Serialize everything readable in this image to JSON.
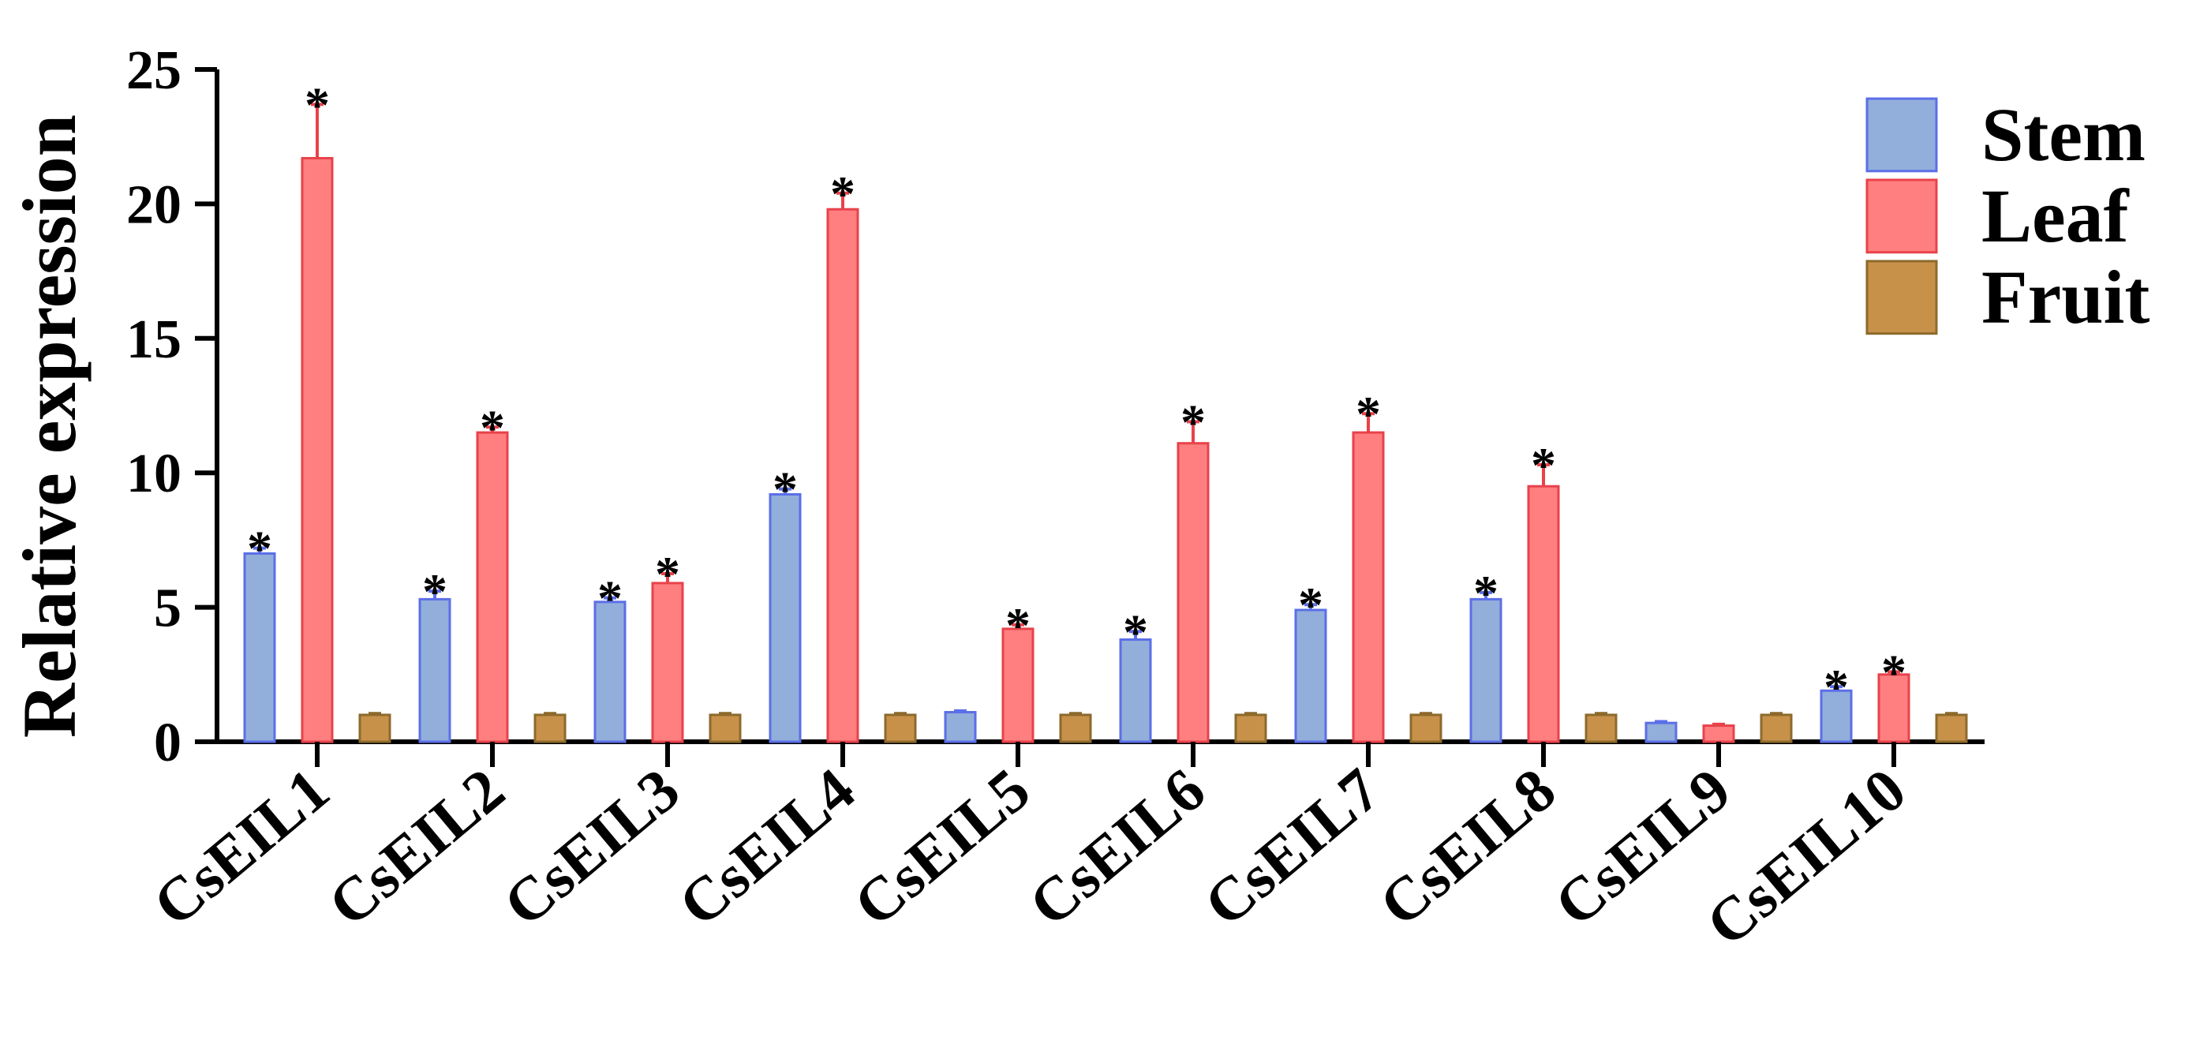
{
  "chart_data": {
    "type": "bar",
    "title": "",
    "xlabel": "",
    "ylabel": "Relative expression",
    "ylim": [
      0,
      25
    ],
    "yticks": [
      "0",
      "5",
      "10",
      "15",
      "20",
      "25"
    ],
    "categories": [
      "CsEIL1",
      "CsEIL2",
      "CsEIL3",
      "CsEIL4",
      "CsEIL5",
      "CsEIL6",
      "CsEIL7",
      "CsEIL8",
      "CsEIL9",
      "CsEIL10"
    ],
    "series": [
      {
        "name": "Stem",
        "color": "#92AEDA",
        "edge": "#5B6FE8",
        "values": [
          7.0,
          5.3,
          5.2,
          9.2,
          1.1,
          3.8,
          4.9,
          5.3,
          0.7,
          1.9
        ],
        "errors": [
          0.2,
          0.3,
          0.15,
          0.2,
          0.05,
          0.3,
          0.2,
          0.25,
          0.05,
          0.15
        ],
        "significant": [
          true,
          true,
          true,
          true,
          false,
          true,
          true,
          true,
          false,
          true
        ]
      },
      {
        "name": "Leaf",
        "color": "#FF7F80",
        "edge": "#E8424A",
        "values": [
          21.7,
          11.5,
          5.9,
          19.8,
          4.2,
          11.1,
          11.5,
          9.5,
          0.6,
          2.5
        ],
        "errors": [
          2.0,
          0.2,
          0.35,
          0.6,
          0.15,
          0.8,
          0.7,
          0.8,
          0.05,
          0.1
        ],
        "significant": [
          true,
          true,
          true,
          true,
          true,
          true,
          true,
          true,
          false,
          true
        ]
      },
      {
        "name": "Fruit",
        "color": "#C8914A",
        "edge": "#8C6A2C",
        "values": [
          1.0,
          1.0,
          1.0,
          1.0,
          1.0,
          1.0,
          1.0,
          1.0,
          1.0,
          1.0
        ],
        "errors": [
          0.05,
          0.05,
          0.05,
          0.05,
          0.05,
          0.05,
          0.05,
          0.05,
          0.05,
          0.05
        ],
        "significant": [
          false,
          false,
          false,
          false,
          false,
          false,
          false,
          false,
          false,
          false
        ]
      }
    ],
    "significance_marker": "*",
    "legend": {
      "position": "top-right"
    },
    "grid": false
  }
}
